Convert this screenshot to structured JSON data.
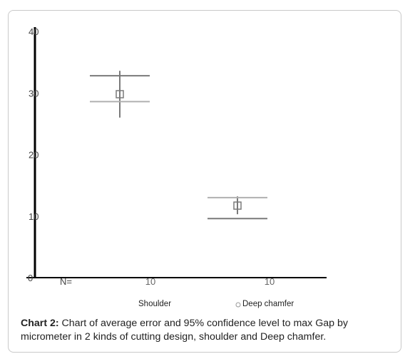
{
  "chart_data": {
    "type": "errorbar",
    "categories": [
      "Shoulder",
      "Deep chamfer"
    ],
    "n_label": "N=",
    "n_values": [
      "10",
      "10"
    ],
    "ylim": [
      0,
      40
    ],
    "yticks": [
      "0",
      "10",
      "20",
      "30",
      "40"
    ],
    "series": [
      {
        "values": [
          29.8,
          11.7
        ],
        "ci_lower": [
          26.0,
          10.3
        ],
        "ci_upper": [
          33.6,
          13.2
        ],
        "whisker_lower": [
          28.6,
          9.6
        ],
        "whisker_upper": [
          32.8,
          13.0
        ]
      }
    ],
    "legend_position": "bottom"
  },
  "caption": {
    "label": "Chart 2:",
    "text": " Chart of average error  and 95% confidence level to max Gap by micrometer in 2 kinds of cutting design, shoulder and Deep chamfer."
  },
  "colors": {
    "axis": "#000000",
    "bar": "#7a7a7a",
    "bar_light": "#b0b0b0",
    "text": "#222222"
  }
}
